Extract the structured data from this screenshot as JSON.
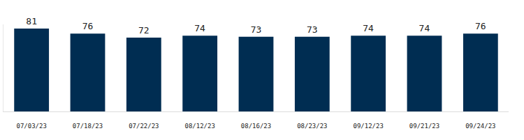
{
  "chart_data": {
    "type": "bar",
    "categories": [
      "07/03/23",
      "07/18/23",
      "07/22/23",
      "08/12/23",
      "08/16/23",
      "08/23/23",
      "09/12/23",
      "09/21/23",
      "09/24/23"
    ],
    "values": [
      81,
      76,
      72,
      74,
      73,
      73,
      74,
      74,
      76
    ],
    "color": "#002d52",
    "ylim": [
      0,
      85
    ],
    "grid": false,
    "data_labels": true,
    "tick_labels": "x"
  }
}
